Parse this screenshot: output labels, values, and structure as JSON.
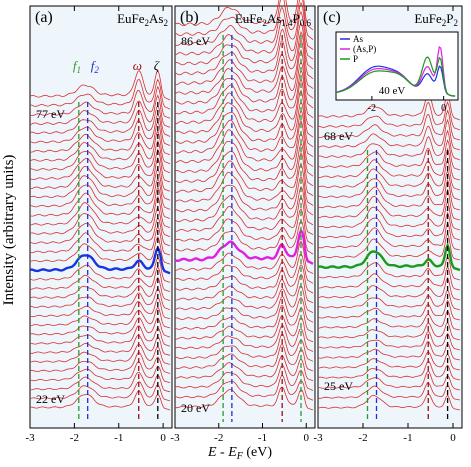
{
  "figure": {
    "ylabel": "Intensity (arbitrary units)",
    "xlabel_main": "E - E",
    "xlabel_sub": "F",
    "xlabel_unit": " (eV)"
  },
  "chart_data": [
    {
      "type": "line",
      "panel": "(a)",
      "compound": {
        "base": "EuFe",
        "s1": "2",
        "mid": "As",
        "s2": "2"
      },
      "energy_top": "77 eV",
      "energy_bottom": "22 eV",
      "n_spectra": 35,
      "highlight_index": 19,
      "highlight_color": "#1a33e0",
      "xlim": [
        -3,
        0.2
      ],
      "xticks": [
        "-3",
        "-2",
        "-1",
        "0"
      ],
      "markers": [
        {
          "label": "f",
          "sub": "1",
          "x": -1.9,
          "color": "#2a9a2a"
        },
        {
          "label": "f",
          "sub": "2",
          "x": -1.7,
          "color": "#2030d0"
        },
        {
          "label": "ω",
          "sub": "",
          "x": -0.55,
          "color": "#9a1010"
        },
        {
          "label": "ζ",
          "sub": "",
          "x": -0.12,
          "color": "#000000"
        }
      ],
      "peaks": [
        {
          "x": -1.75,
          "label": "f"
        },
        {
          "x": -0.55,
          "label": "ω"
        },
        {
          "x": -0.12,
          "label": "ζ"
        }
      ]
    },
    {
      "type": "line",
      "panel": "(b)",
      "compound": {
        "base": "EuFe",
        "s1": "2",
        "mid": "As",
        "s2": "1.4",
        "tail": "P",
        "s3": "0.6"
      },
      "energy_top": "86 eV",
      "energy_bottom": "20 eV",
      "n_spectra": 40,
      "highlight_index": 24,
      "highlight_color": "#e020e0",
      "xlim": [
        -3,
        0.2
      ],
      "xticks": [
        "-3",
        "-2",
        "-1",
        "0"
      ],
      "markers": [
        {
          "x": -1.9,
          "color": "#2a9a2a"
        },
        {
          "x": -1.7,
          "color": "#2030d0"
        },
        {
          "x": -0.55,
          "color": "#9a1010"
        },
        {
          "x": -0.12,
          "color": "#2a9a2a"
        }
      ],
      "peaks": [
        {
          "x": -1.75,
          "label": "f"
        },
        {
          "x": -0.55,
          "label": "ω"
        },
        {
          "x": -0.12,
          "label": "ζ"
        }
      ]
    },
    {
      "type": "line",
      "panel": "(c)",
      "compound": {
        "base": "EuFe",
        "s1": "2",
        "mid": "P",
        "s2": "2"
      },
      "energy_top": "68 eV",
      "energy_bottom": "25 eV",
      "n_spectra": 30,
      "highlight_index": 15,
      "highlight_color": "#1a9a1a",
      "xlim": [
        -3,
        0.2
      ],
      "xticks": [
        "-3",
        "-2",
        "-1",
        "0"
      ],
      "markers": [
        {
          "x": -1.9,
          "color": "#2a9a2a"
        },
        {
          "x": -1.7,
          "color": "#2030d0"
        },
        {
          "x": -0.55,
          "color": "#9a1010"
        },
        {
          "x": -0.12,
          "color": "#000000"
        }
      ],
      "peaks": [
        {
          "x": -1.75,
          "label": "f"
        },
        {
          "x": -0.55,
          "label": "ω"
        },
        {
          "x": -0.12,
          "label": "ζ"
        }
      ],
      "inset": {
        "energy": "40 eV",
        "xticks": [
          "-2",
          "0"
        ],
        "xlim": [
          -3,
          0.4
        ],
        "legend": [
          {
            "name": "As",
            "color": "#1a33e0"
          },
          {
            "name": "(As,P)",
            "color": "#e020e0"
          },
          {
            "name": "P",
            "color": "#1a9a1a"
          }
        ]
      }
    }
  ]
}
